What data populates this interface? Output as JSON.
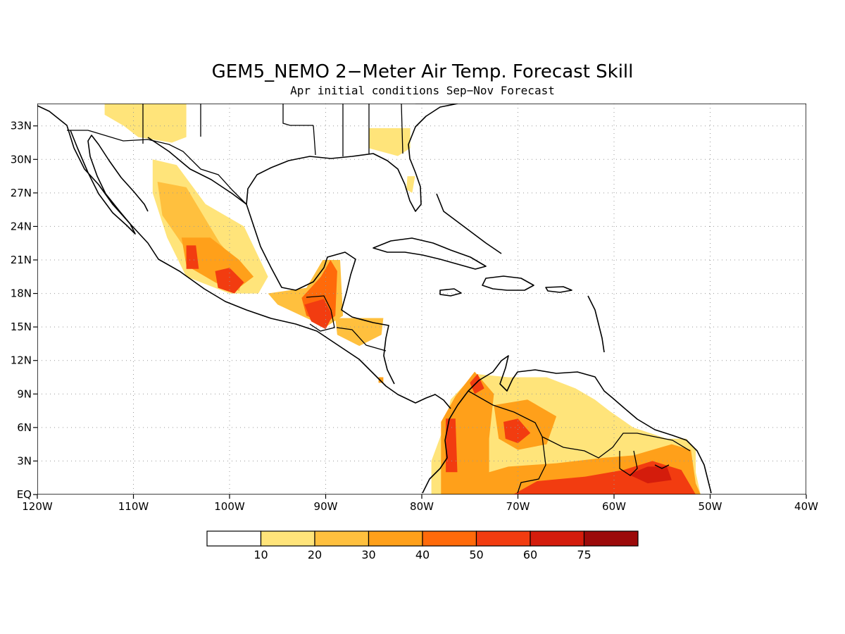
{
  "title": "GEM5_NEMO 2−Meter Air Temp. Forecast Skill",
  "subtitle": "Apr initial conditions  Sep−Nov Forecast",
  "map": {
    "lon_range": [
      -120,
      -40
    ],
    "lat_range": [
      0,
      35
    ],
    "lon_ticks": [
      {
        "value": -120,
        "label": "120W"
      },
      {
        "value": -110,
        "label": "110W"
      },
      {
        "value": -100,
        "label": "100W"
      },
      {
        "value": -90,
        "label": "90W"
      },
      {
        "value": -80,
        "label": "80W"
      },
      {
        "value": -70,
        "label": "70W"
      },
      {
        "value": -60,
        "label": "60W"
      },
      {
        "value": -50,
        "label": "50W"
      },
      {
        "value": -40,
        "label": "40W"
      }
    ],
    "lat_ticks": [
      {
        "value": 0,
        "label": "EQ"
      },
      {
        "value": 3,
        "label": "3N"
      },
      {
        "value": 6,
        "label": "6N"
      },
      {
        "value": 9,
        "label": "9N"
      },
      {
        "value": 12,
        "label": "12N"
      },
      {
        "value": 15,
        "label": "15N"
      },
      {
        "value": 18,
        "label": "18N"
      },
      {
        "value": 21,
        "label": "21N"
      },
      {
        "value": 24,
        "label": "24N"
      },
      {
        "value": 27,
        "label": "27N"
      },
      {
        "value": 30,
        "label": "30N"
      },
      {
        "value": 33,
        "label": "33N"
      }
    ],
    "grid": true
  },
  "colorbar": {
    "labels": [
      "10",
      "20",
      "30",
      "40",
      "50",
      "60",
      "75"
    ],
    "colors": [
      "#ffffff",
      "#ffe47a",
      "#ffc03e",
      "#ffa01a",
      "#ff6a0a",
      "#f23c10",
      "#d41c0c",
      "#9c0a0a"
    ]
  },
  "skill_regions": [
    {
      "name": "us-southwest",
      "level": 1,
      "poly": [
        [
          -113,
          35
        ],
        [
          -104.5,
          35
        ],
        [
          -104.5,
          32
        ],
        [
          -106,
          31.5
        ],
        [
          -109.5,
          32
        ],
        [
          -111,
          33
        ],
        [
          -113,
          34
        ]
      ]
    },
    {
      "name": "us-southeast",
      "level": 1,
      "poly": [
        [
          -85.5,
          32.8
        ],
        [
          -81.2,
          32.8
        ],
        [
          -81.2,
          31
        ],
        [
          -82.5,
          30.3
        ],
        [
          -85.5,
          31
        ]
      ]
    },
    {
      "name": "florida",
      "level": 1,
      "poly": [
        [
          -81.5,
          28.5
        ],
        [
          -80.7,
          28.5
        ],
        [
          -81,
          27
        ],
        [
          -81.6,
          27.3
        ]
      ]
    },
    {
      "name": "mexico-west",
      "level": 1,
      "poly": [
        [
          -108,
          30
        ],
        [
          -105.5,
          29.5
        ],
        [
          -102.5,
          26
        ],
        [
          -98.5,
          24
        ],
        [
          -96,
          19.5
        ],
        [
          -97,
          18
        ],
        [
          -100,
          18
        ],
        [
          -104.5,
          19.5
        ],
        [
          -106.5,
          23
        ],
        [
          -108,
          27
        ]
      ]
    },
    {
      "name": "mexico-west-core",
      "level": 2,
      "poly": [
        [
          -107.5,
          28
        ],
        [
          -104.5,
          27.5
        ],
        [
          -101,
          22.5
        ],
        [
          -98.5,
          20
        ],
        [
          -99,
          18.2
        ],
        [
          -102.5,
          20
        ],
        [
          -105,
          22.5
        ],
        [
          -107,
          25
        ]
      ]
    },
    {
      "name": "mexico-central",
      "level": 3,
      "poly": [
        [
          -105,
          23
        ],
        [
          -102,
          23
        ],
        [
          -99,
          21
        ],
        [
          -97.5,
          19.5
        ],
        [
          -99.5,
          18.2
        ],
        [
          -101.5,
          19
        ],
        [
          -104.5,
          20.5
        ]
      ]
    },
    {
      "name": "mexico-hot",
      "level": 5,
      "poly": [
        [
          -104.5,
          22.3
        ],
        [
          -103.5,
          22.3
        ],
        [
          -103.2,
          20.2
        ],
        [
          -104.5,
          20.2
        ]
      ]
    },
    {
      "name": "mexico-south",
      "level": 5,
      "poly": [
        [
          -101.5,
          20
        ],
        [
          -100,
          20.3
        ],
        [
          -98.5,
          19
        ],
        [
          -99.5,
          18
        ],
        [
          -101.2,
          18.5
        ]
      ]
    },
    {
      "name": "yucatan",
      "level": 2,
      "poly": [
        [
          -96,
          18
        ],
        [
          -92,
          18.5
        ],
        [
          -90.3,
          21
        ],
        [
          -88.5,
          21
        ],
        [
          -88.2,
          16
        ],
        [
          -90,
          15
        ],
        [
          -92,
          15.8
        ],
        [
          -95,
          17
        ]
      ]
    },
    {
      "name": "yucatan-core",
      "level": 4,
      "poly": [
        [
          -92.5,
          17.6
        ],
        [
          -90.5,
          19.5
        ],
        [
          -89.5,
          21
        ],
        [
          -88.8,
          20
        ],
        [
          -89,
          16
        ],
        [
          -90,
          15.3
        ],
        [
          -92,
          16
        ]
      ]
    },
    {
      "name": "guatemala-hot",
      "level": 5,
      "poly": [
        [
          -92.2,
          17
        ],
        [
          -90.2,
          17.5
        ],
        [
          -89.3,
          16
        ],
        [
          -90,
          14.8
        ],
        [
          -91.5,
          15.5
        ]
      ]
    },
    {
      "name": "honduras",
      "level": 2,
      "poly": [
        [
          -89,
          15.8
        ],
        [
          -84,
          15.8
        ],
        [
          -84.2,
          14.3
        ],
        [
          -86.5,
          13.3
        ],
        [
          -88.8,
          14.3
        ]
      ]
    },
    {
      "name": "nicaragua-dot",
      "level": 3,
      "poly": [
        [
          -84.5,
          10.5
        ],
        [
          -84,
          10.5
        ],
        [
          -84,
          10
        ],
        [
          -84.5,
          10
        ]
      ]
    },
    {
      "name": "south-america",
      "level": 1,
      "poly": [
        [
          -79,
          0
        ],
        [
          -79,
          3
        ],
        [
          -77.5,
          6.5
        ],
        [
          -77,
          8.5
        ],
        [
          -74.5,
          10.8
        ],
        [
          -71,
          10.5
        ],
        [
          -67,
          10.5
        ],
        [
          -64,
          9.5
        ],
        [
          -62,
          8.5
        ],
        [
          -60.5,
          7.5
        ],
        [
          -58,
          6
        ],
        [
          -54.5,
          5
        ],
        [
          -52.5,
          5
        ],
        [
          -51.5,
          4
        ],
        [
          -51.5,
          2
        ],
        [
          -51,
          0
        ]
      ]
    },
    {
      "name": "sa-colombia",
      "level": 3,
      "poly": [
        [
          -78,
          0
        ],
        [
          -78,
          6.5
        ],
        [
          -76.5,
          8.8
        ],
        [
          -74.5,
          11
        ],
        [
          -72.5,
          9
        ],
        [
          -73,
          5
        ],
        [
          -73,
          2
        ],
        [
          -75.5,
          0
        ]
      ]
    },
    {
      "name": "sa-colombia-west",
      "level": 5,
      "poly": [
        [
          -77.5,
          2
        ],
        [
          -77.5,
          6.8
        ],
        [
          -76.5,
          6.8
        ],
        [
          -76.3,
          2
        ]
      ]
    },
    {
      "name": "sa-colombia-north",
      "level": 5,
      "poly": [
        [
          -75,
          10
        ],
        [
          -74.2,
          10.8
        ],
        [
          -73.5,
          9.5
        ],
        [
          -74.5,
          9
        ]
      ]
    },
    {
      "name": "sa-venezuela",
      "level": 3,
      "poly": [
        [
          -72.5,
          8
        ],
        [
          -69,
          8.5
        ],
        [
          -66,
          7
        ],
        [
          -67,
          4.5
        ],
        [
          -70,
          4
        ],
        [
          -72,
          5
        ]
      ]
    },
    {
      "name": "sa-venezuela-core",
      "level": 5,
      "poly": [
        [
          -71.5,
          6.5
        ],
        [
          -70,
          6.8
        ],
        [
          -68.7,
          5.5
        ],
        [
          -70,
          4.6
        ],
        [
          -71.3,
          5
        ]
      ]
    },
    {
      "name": "sa-amazon",
      "level": 3,
      "poly": [
        [
          -76,
          0
        ],
        [
          -75,
          1.5
        ],
        [
          -71,
          2.5
        ],
        [
          -66,
          2.8
        ],
        [
          -61,
          3.3
        ],
        [
          -58,
          3.5
        ],
        [
          -54,
          4.5
        ],
        [
          -52,
          4
        ],
        [
          -51.5,
          1
        ],
        [
          -51,
          0
        ]
      ]
    },
    {
      "name": "sa-amazon-hot",
      "level": 5,
      "poly": [
        [
          -70.5,
          0
        ],
        [
          -68,
          1.2
        ],
        [
          -63,
          1.6
        ],
        [
          -59,
          2.2
        ],
        [
          -56,
          3
        ],
        [
          -53,
          2.2
        ],
        [
          -51.5,
          0
        ]
      ]
    },
    {
      "name": "sa-guianas-hot",
      "level": 6,
      "poly": [
        [
          -58.5,
          1.8
        ],
        [
          -56.5,
          2.5
        ],
        [
          -54.5,
          2.5
        ],
        [
          -54,
          1.3
        ],
        [
          -56.5,
          1
        ]
      ]
    }
  ]
}
